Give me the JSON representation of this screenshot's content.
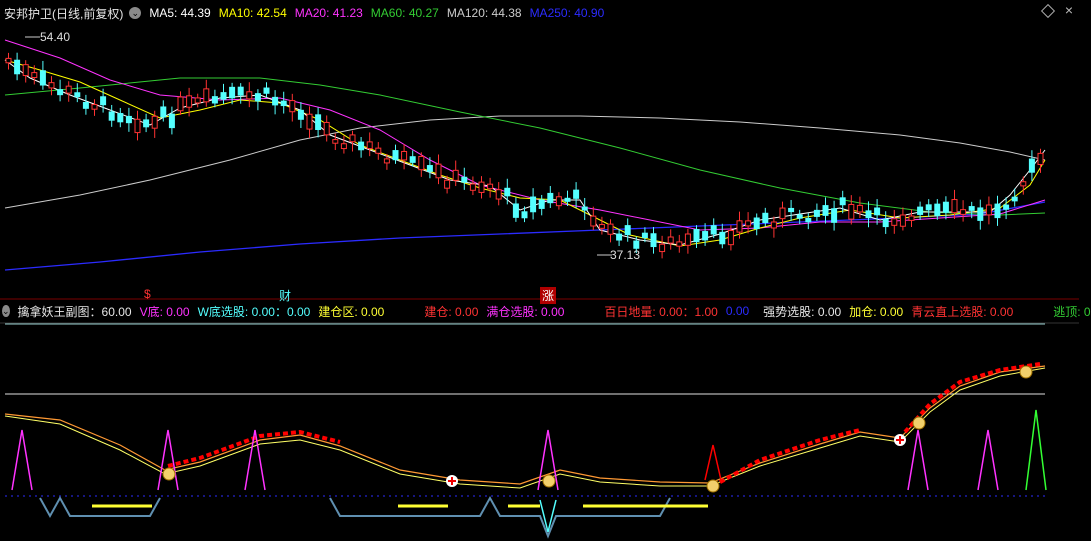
{
  "top_bar": {
    "title": "安邦护卫(日线,前复权)",
    "ma5": "MA5: 44.39",
    "ma10": "MA10: 42.54",
    "ma20": "MA20: 41.23",
    "ma60": "MA60: 40.27",
    "ma120": "MA120: 44.38",
    "ma250": "MA250: 40.90"
  },
  "price_labels": {
    "high": "54.40",
    "low": "37.13"
  },
  "event_markers": {
    "m1": "$",
    "m2": "财",
    "m3": "涨"
  },
  "sub_bar": {
    "title": "擒拿妖王副图：60.00",
    "v_bottom": "V底: 0.00",
    "w_bottom": "W底选股: 0.00：0.00",
    "build_zone": "建仓区: 0.00",
    "build": "建仓: 0.00",
    "full_pick": "满仓选股: 0.00",
    "hundred_day": "百日地量: 0.00：1.00",
    "blue_val": "0.00",
    "strong_pick": "强势选股: 0.00",
    "add": "加仓: 0.00",
    "qingyun": "青云直上选股: 0.00",
    "escape": "逃顶: 0"
  },
  "colors": {
    "ma5": "#ffffff",
    "ma10": "#ffff00",
    "ma20": "#ff33ff",
    "ma60": "#33cc33",
    "ma120": "#cccccc",
    "ma250": "#2b2bff",
    "up": "#ff3333",
    "down": "#54ffff"
  },
  "icons": [
    "chevron-down-icon",
    "diamond-icon",
    "close-icon",
    "money-bag-icon",
    "plus-circle-icon"
  ]
}
